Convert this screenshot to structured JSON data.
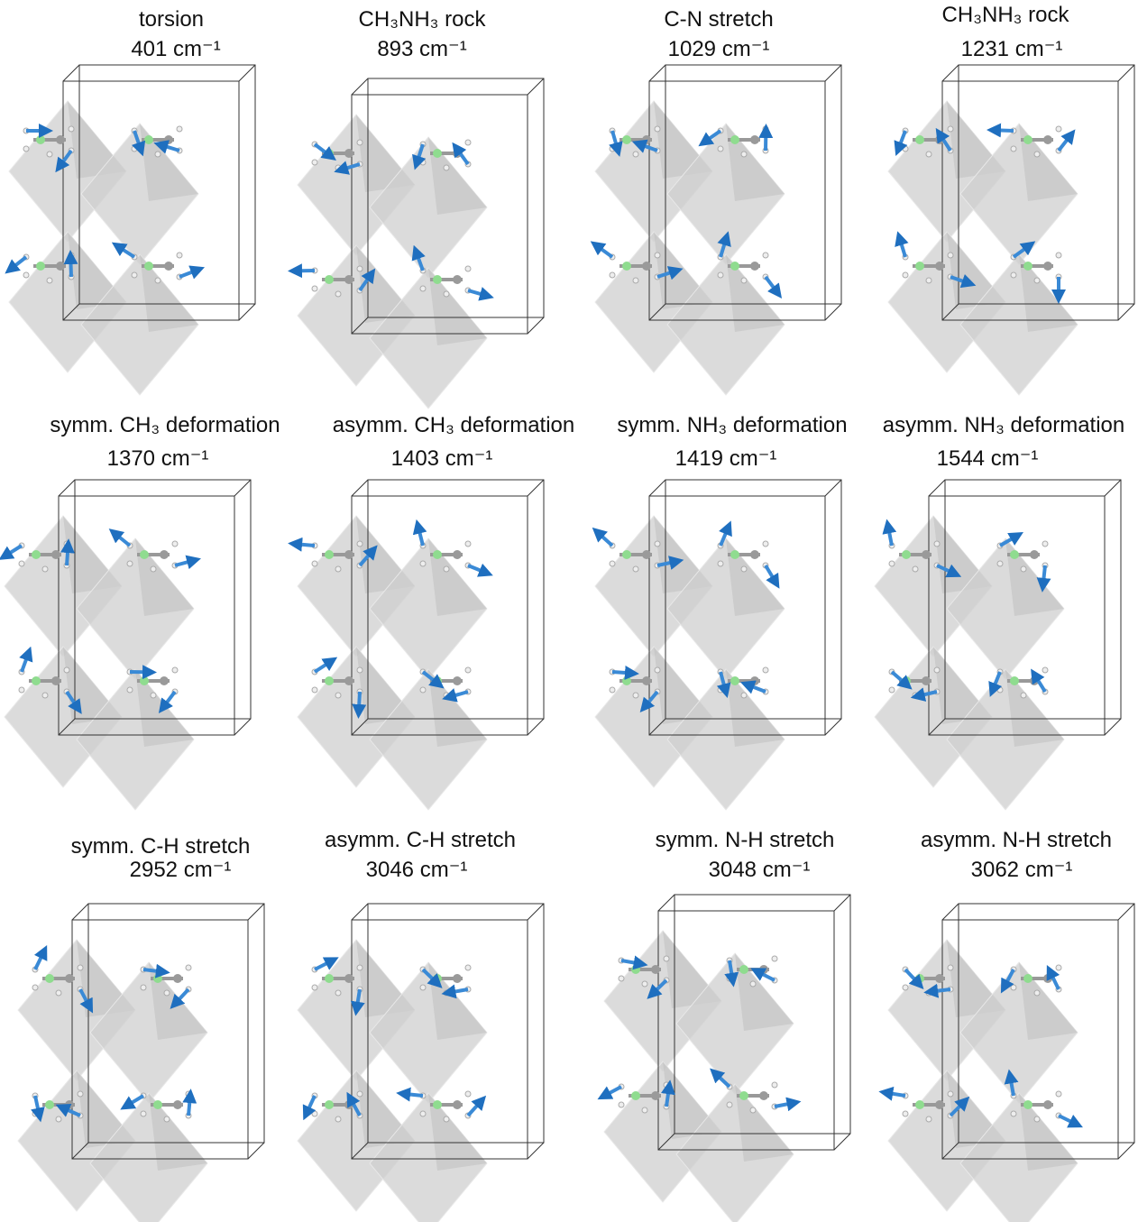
{
  "unit": "cm⁻¹",
  "panels": [
    {
      "mode": "torsion",
      "frequency": 401
    },
    {
      "mode": "CH₃NH₃ rock",
      "frequency": 893
    },
    {
      "mode": "C-N stretch",
      "frequency": 1029
    },
    {
      "mode": "CH₃NH₃ rock",
      "frequency": 1231
    },
    {
      "mode": "symm. CH₃ deformation",
      "frequency": 1370
    },
    {
      "mode": "asymm. CH₃ deformation",
      "frequency": 1403
    },
    {
      "mode": "symm. NH₃ deformation",
      "frequency": 1419
    },
    {
      "mode": "asymm. NH₃ deformation",
      "frequency": 1544
    },
    {
      "mode": "symm. C-H stretch",
      "frequency": 2952
    },
    {
      "mode": "asymm. C-H stretch",
      "frequency": 3046
    },
    {
      "mode": "symm. N-H stretch",
      "frequency": 3048
    },
    {
      "mode": "asymm. N-H stretch",
      "frequency": 3062
    }
  ]
}
